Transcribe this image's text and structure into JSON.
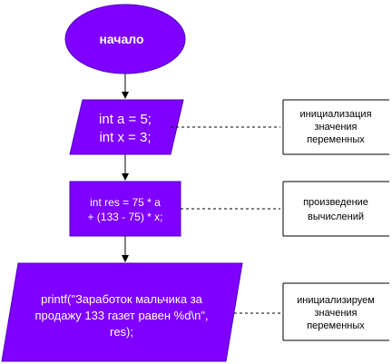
{
  "colors": {
    "fill": "#7F00FF",
    "stroke": "#4B00C0",
    "text_on_fill": "#FFFFFF",
    "connector": "#000000"
  },
  "nodes": {
    "start": {
      "label": "начало"
    },
    "init": {
      "lines": [
        "int a = 5;",
        "int x = 3;"
      ]
    },
    "calc": {
      "lines": [
        "int res = 75 * a",
        "+ (133 - 75) * x;"
      ]
    },
    "print": {
      "lines": [
        "printf(\"Заработок мальчика за",
        "продажу 133 газет равен %d\\n\",",
        "res);"
      ]
    }
  },
  "comments": {
    "init_note": {
      "lines": [
        "инициализация",
        "значения",
        "переменных"
      ]
    },
    "calc_note": {
      "lines": [
        "произведение",
        "вычислений"
      ]
    },
    "print_note": {
      "lines": [
        "инициализируем",
        "значения",
        "переменных"
      ]
    }
  }
}
